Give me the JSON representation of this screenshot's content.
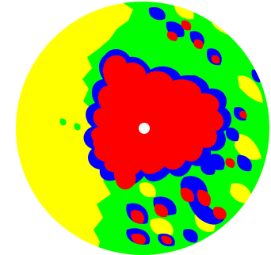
{
  "image": {
    "kind": "polar circular coverage map",
    "background_color": "#FFFFFF",
    "colors": {
      "level_1": "#FFFF00",
      "level_2": "#00FF00",
      "level_3": "#0000FF",
      "level_4": "#FF0000",
      "center_marker": "#FFFFFF"
    },
    "levels": [
      {
        "name": "level-1",
        "color": "#FFFF00"
      },
      {
        "name": "level-2",
        "color": "#00FF00"
      },
      {
        "name": "level-3",
        "color": "#0000FF"
      },
      {
        "name": "level-4",
        "color": "#FF0000"
      }
    ]
  }
}
